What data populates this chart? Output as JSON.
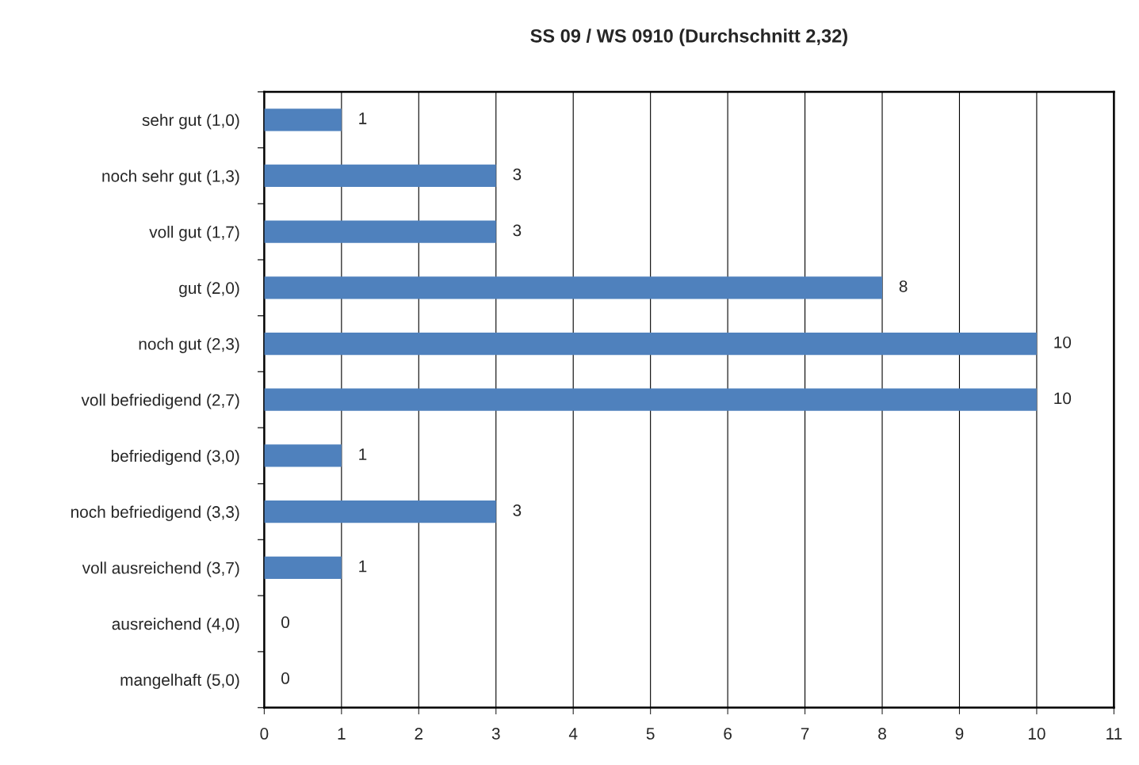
{
  "chart_data": {
    "type": "bar",
    "orientation": "horizontal",
    "title": "SS 09 / WS 0910 (Durchschnitt 2,32)",
    "categories": [
      "sehr gut (1,0)",
      "noch sehr gut (1,3)",
      "voll gut (1,7)",
      "gut (2,0)",
      "noch gut (2,3)",
      "voll befriedigend (2,7)",
      "befriedigend (3,0)",
      "noch befriedigend (3,3)",
      "voll ausreichend (3,7)",
      "ausreichend (4,0)",
      "mangelhaft (5,0)"
    ],
    "values": [
      1,
      3,
      3,
      8,
      10,
      10,
      1,
      3,
      1,
      0,
      0
    ],
    "color": "#4f81bd",
    "xlim": [
      0,
      11
    ],
    "xticks": [
      0,
      1,
      2,
      3,
      4,
      5,
      6,
      7,
      8,
      9,
      10,
      11
    ],
    "grid": "x",
    "data_labels": true
  }
}
